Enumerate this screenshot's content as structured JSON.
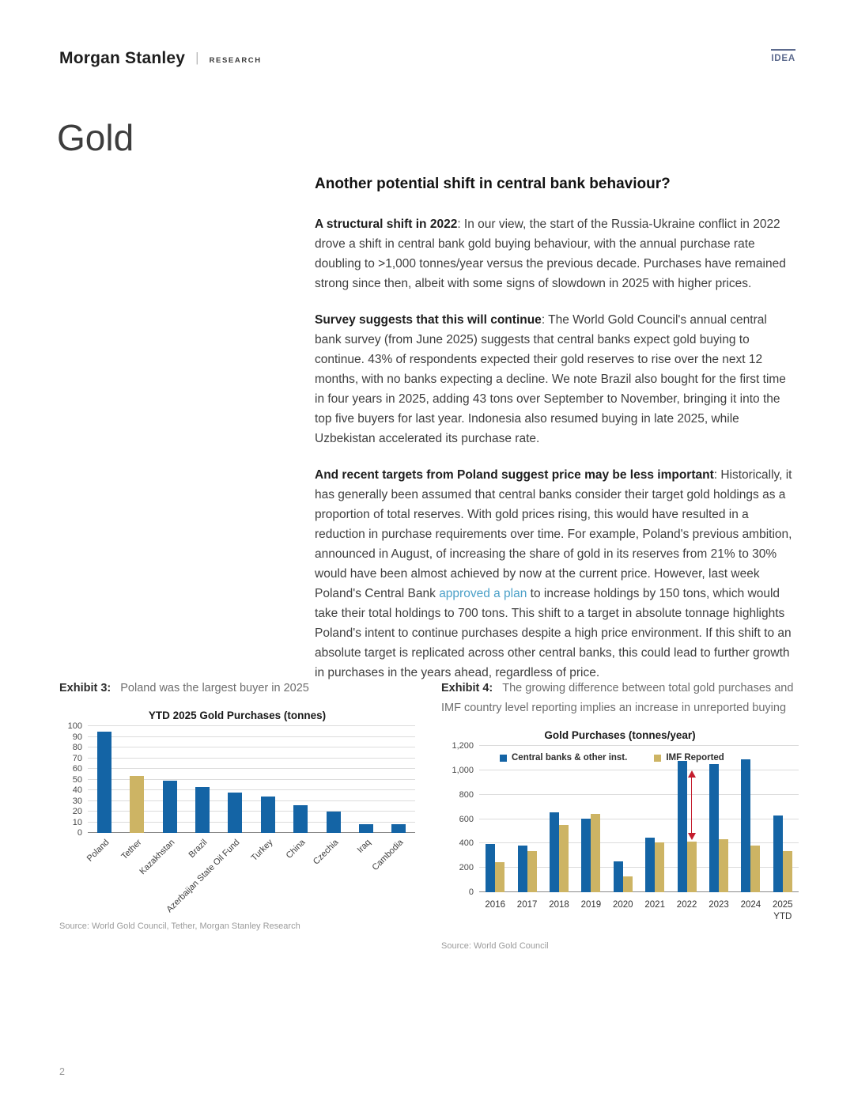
{
  "header": {
    "brand": "Morgan Stanley",
    "brand_divider": "|",
    "brand_sub": "RESEARCH",
    "badge": "IDEA"
  },
  "page_title": "Gold",
  "article": {
    "heading": "Another potential shift in central bank behaviour?",
    "paragraphs": [
      {
        "lead": "A structural shift in 2022",
        "body": ": In our view, the start of the Russia-Ukraine conflict in 2022 drove a shift in central bank gold buying behaviour, with the annual purchase rate doubling to >1,000 tonnes/year versus the previous decade. Purchases have remained strong since then, albeit with some signs of slowdown in 2025 with higher prices."
      },
      {
        "lead": "Survey suggests that this will continue",
        "body": ": The World Gold Council's annual central bank survey (from June 2025) suggests that central banks expect gold buying to continue. 43% of respondents expected their gold reserves to rise over the next 12 months, with no banks expecting a decline. We note Brazil also bought for the first time in four years in 2025, adding 43 tons over September to November, bringing it into the top five buyers for last year. Indonesia also resumed buying in late 2025, while Uzbekistan accelerated its purchase rate."
      },
      {
        "lead": "And recent targets from Poland suggest price may be less important",
        "body_before_link": ": Historically, it has generally been assumed that central banks consider their target gold holdings as a proportion of total reserves. With gold prices rising, this would have resulted in a reduction in purchase requirements over time. For example, Poland's previous ambition, announced in August, of increasing the share of gold in its reserves from 21% to 30% would have been almost achieved by now at the current price. However, last week Poland's Central Bank ",
        "link": "approved a plan",
        "body_after_link": " to increase holdings by 150 tons, which would take their total holdings to 700 tons. This shift to a target in absolute tonnage highlights Poland's intent to continue purchases despite a high price environment. If this shift to an absolute target is replicated across other central banks, this could lead to further growth in purchases in the years ahead, regardless of price."
      }
    ]
  },
  "exhibit3": {
    "label": "Exhibit 3:",
    "caption": "Poland was the largest buyer in 2025",
    "source": "Source: World Gold Council, Tether, Morgan Stanley Research"
  },
  "exhibit4": {
    "label": "Exhibit 4:",
    "caption": "The growing difference between total gold purchases and IMF country level reporting implies an increase in unreported buying",
    "source": "Source: World Gold Council"
  },
  "chart_data": [
    {
      "type": "bar",
      "title": "YTD 2025 Gold Purchases (tonnes)",
      "categories": [
        "Poland",
        "Tether",
        "Kazakhstan",
        "Brazil",
        "Azerbaijan State Oil Fund",
        "Turkey",
        "China",
        "Czechia",
        "Iraq",
        "Cambodia"
      ],
      "values": [
        95,
        53,
        49,
        43,
        38,
        34,
        26,
        20,
        8,
        8
      ],
      "bar_colors": [
        "#1464a5",
        "#cdb464",
        "#1464a5",
        "#1464a5",
        "#1464a5",
        "#1464a5",
        "#1464a5",
        "#1464a5",
        "#1464a5",
        "#1464a5"
      ],
      "xlabel": "",
      "ylabel": "",
      "ylim": [
        0,
        100
      ],
      "ytick_step": 10,
      "grid": true,
      "legend_position": "none"
    },
    {
      "type": "bar",
      "title": "Gold Purchases (tonnes/year)",
      "categories": [
        "2016",
        "2017",
        "2018",
        "2019",
        "2020",
        "2021",
        "2022",
        "2023",
        "2024",
        "2025\nYTD"
      ],
      "series": [
        {
          "name": "Central banks & other inst.",
          "color": "#1464a5",
          "values": [
            395,
            380,
            655,
            605,
            255,
            450,
            1080,
            1050,
            1090,
            630
          ]
        },
        {
          "name": "IMF Reported",
          "color": "#cdb464",
          "values": [
            245,
            335,
            550,
            645,
            130,
            410,
            415,
            435,
            385,
            335
          ]
        }
      ],
      "xlabel": "",
      "ylabel": "",
      "ylim": [
        0,
        1200
      ],
      "ytick_step": 200,
      "grid": true,
      "legend_position": "top-left-inset",
      "annotation": {
        "type": "double-arrow",
        "category_index": 6,
        "from": 1000,
        "to": 430,
        "color": "#c41e2e"
      }
    }
  ],
  "footer": {
    "page_number": "2"
  }
}
